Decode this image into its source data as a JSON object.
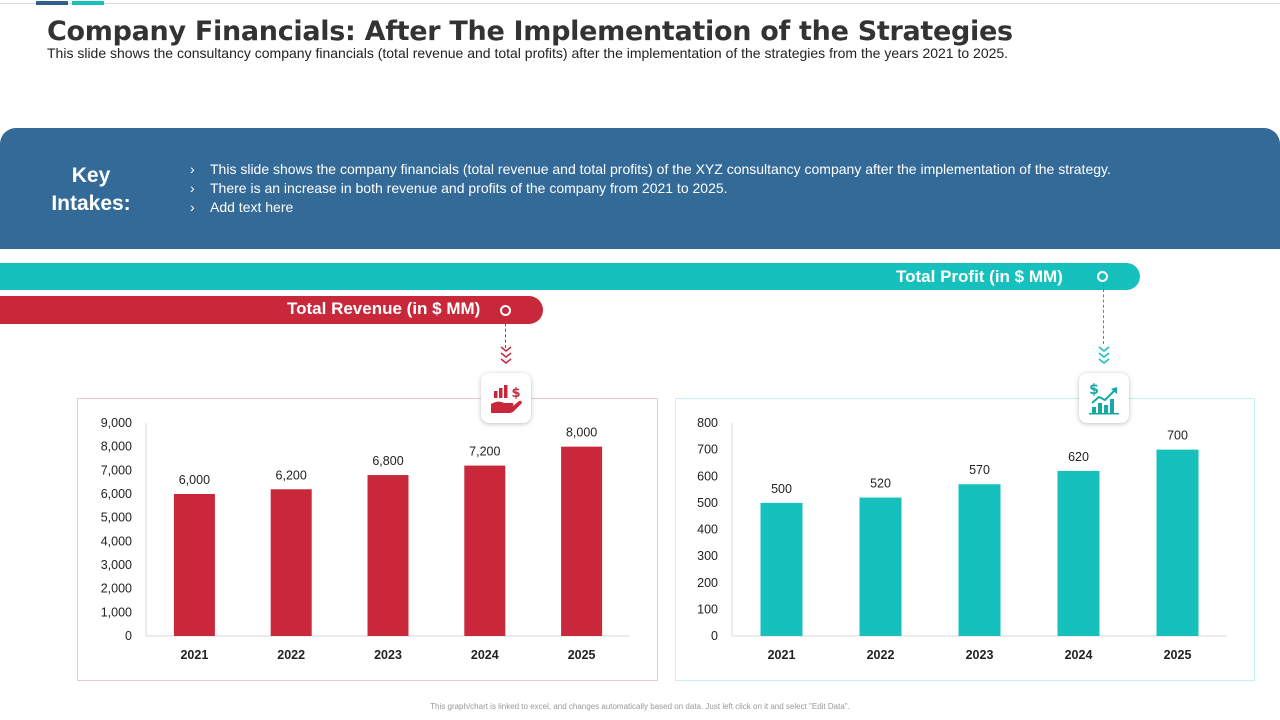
{
  "title": "Company Financials: After The Implementation of the Strategies",
  "subtitle": "This slide shows the consultancy company financials (total revenue and total profits) after the implementation of the strategies from the years 2021 to 2025.",
  "key_intakes": {
    "title_line1": "Key",
    "title_line2": "Intakes:",
    "bullet_glyph": "›",
    "items": [
      "This slide shows the company financials (total revenue and total profits) of the XYZ consultancy company after the implementation of the strategy.",
      "There is an increase in both revenue and profits of the company from 2021 to 2025.",
      "Add text here"
    ]
  },
  "labels": {
    "profit": "Total Profit (in $ MM)",
    "revenue": "Total Revenue (in $ MM)"
  },
  "icons": {
    "revenue": "money-hand-icon",
    "profit": "dollar-growth-chart-icon"
  },
  "colors": {
    "revenue": "#c8283a",
    "profit": "#16c1bd",
    "banner": "#336a98"
  },
  "chart_data": [
    {
      "type": "bar",
      "title": "Total Revenue (in $ MM)",
      "categories": [
        "2021",
        "2022",
        "2023",
        "2024",
        "2025"
      ],
      "values": [
        6000,
        6200,
        6800,
        7200,
        8000
      ],
      "value_labels": [
        "6,000",
        "6,200",
        "6,800",
        "7,200",
        "8,000"
      ],
      "ylim": [
        0,
        9000
      ],
      "yticks": [
        0,
        1000,
        2000,
        3000,
        4000,
        5000,
        6000,
        7000,
        8000,
        9000
      ],
      "ytick_labels": [
        "0",
        "1,000",
        "2,000",
        "3,000",
        "4,000",
        "5,000",
        "6,000",
        "7,000",
        "8,000",
        "9,000"
      ],
      "xlabel": "",
      "ylabel": "",
      "grid": false,
      "color": "#c8283a"
    },
    {
      "type": "bar",
      "title": "Total Profit (in $ MM)",
      "categories": [
        "2021",
        "2022",
        "2023",
        "2024",
        "2025"
      ],
      "values": [
        500,
        520,
        570,
        620,
        700
      ],
      "value_labels": [
        "500",
        "520",
        "570",
        "620",
        "700"
      ],
      "ylim": [
        0,
        800
      ],
      "yticks": [
        0,
        100,
        200,
        300,
        400,
        500,
        600,
        700,
        800
      ],
      "ytick_labels": [
        "0",
        "100",
        "200",
        "300",
        "400",
        "500",
        "600",
        "700",
        "800"
      ],
      "xlabel": "",
      "ylabel": "",
      "grid": false,
      "color": "#16c1bd"
    }
  ],
  "footnote": "This graph/chart is linked to excel, and changes automatically based on data. Just left click on it and select \"Edit Data\"."
}
